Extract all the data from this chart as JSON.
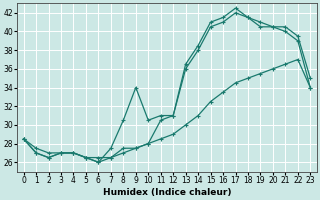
{
  "xlabel": "Humidex (Indice chaleur)",
  "background_color": "#cce8e5",
  "grid_color": "#ffffff",
  "line_color": "#1a7a6e",
  "xlim": [
    -0.5,
    23.5
  ],
  "ylim": [
    25.0,
    43.0
  ],
  "yticks": [
    26,
    28,
    30,
    32,
    34,
    36,
    38,
    40,
    42
  ],
  "xticks": [
    0,
    1,
    2,
    3,
    4,
    5,
    6,
    7,
    8,
    9,
    10,
    11,
    12,
    13,
    14,
    15,
    16,
    17,
    18,
    19,
    20,
    21,
    22,
    23
  ],
  "series1_x": [
    0,
    1,
    2,
    3,
    4,
    5,
    6,
    7,
    8,
    9,
    10,
    11,
    12,
    13,
    14,
    15,
    16,
    17,
    18,
    19,
    20,
    21,
    22,
    23
  ],
  "series1_y": [
    28.5,
    27.0,
    26.5,
    27.0,
    27.0,
    26.5,
    26.0,
    26.5,
    27.5,
    27.5,
    28.0,
    30.5,
    31.0,
    36.0,
    38.0,
    40.5,
    41.0,
    42.0,
    41.5,
    40.5,
    40.5,
    40.5,
    39.5,
    35.0
  ],
  "series2_x": [
    0,
    1,
    2,
    3,
    4,
    5,
    6,
    7,
    8,
    9,
    10,
    11,
    12,
    13,
    14,
    15,
    16,
    17,
    18,
    19,
    20,
    21,
    22,
    23
  ],
  "series2_y": [
    28.5,
    27.0,
    26.5,
    27.0,
    27.0,
    26.5,
    26.0,
    27.5,
    30.5,
    34.0,
    30.5,
    31.0,
    31.0,
    36.5,
    38.5,
    41.0,
    41.5,
    42.5,
    41.5,
    41.0,
    40.5,
    40.0,
    39.0,
    34.0
  ],
  "series3_x": [
    0,
    1,
    2,
    3,
    4,
    5,
    6,
    7,
    8,
    9,
    10,
    11,
    12,
    13,
    14,
    15,
    16,
    17,
    18,
    19,
    20,
    21,
    22,
    23
  ],
  "series3_y": [
    28.5,
    27.5,
    27.0,
    27.0,
    27.0,
    26.5,
    26.5,
    26.5,
    27.0,
    27.5,
    28.0,
    28.5,
    29.0,
    30.0,
    31.0,
    32.5,
    33.5,
    34.5,
    35.0,
    35.5,
    36.0,
    36.5,
    37.0,
    34.0
  ]
}
